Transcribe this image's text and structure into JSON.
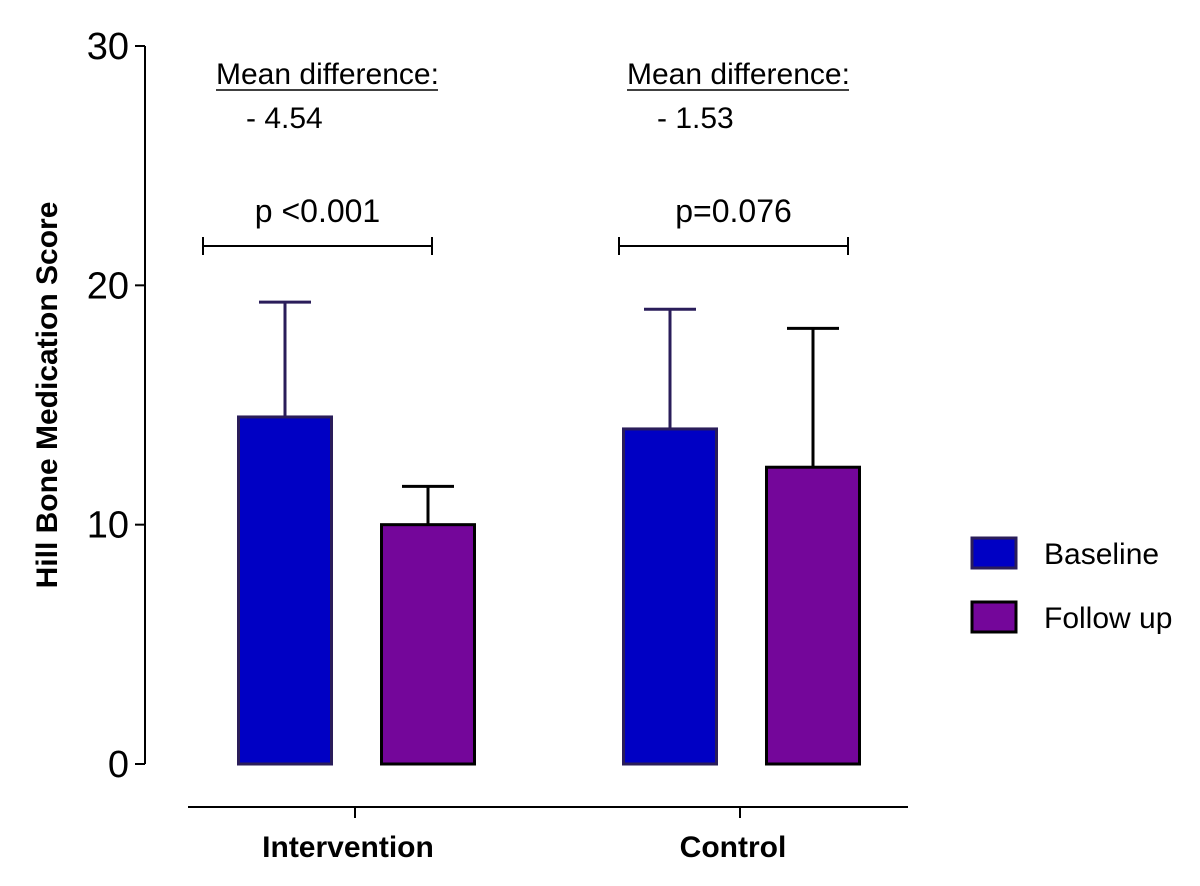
{
  "chart_data": {
    "type": "bar",
    "title": "",
    "xlabel": "",
    "ylabel": "Hill Bone Medication Score",
    "ylim": [
      0,
      30
    ],
    "yticks": [
      0,
      10,
      20,
      30
    ],
    "categories": [
      "Intervention",
      "Control"
    ],
    "series": [
      {
        "name": "Baseline",
        "color": "#0000c4",
        "border": "#2a1d5a",
        "values": [
          14.5,
          14.0
        ],
        "error_upper": [
          19.3,
          19.0
        ]
      },
      {
        "name": "Follow up",
        "color": "#74069a",
        "border": "#000000",
        "values": [
          10.0,
          12.4
        ],
        "error_upper": [
          11.6,
          18.2
        ]
      }
    ],
    "annotations": [
      {
        "group": 0,
        "heading": "Mean difference:",
        "value": "- 4.54",
        "pvalue": "p <0.001"
      },
      {
        "group": 1,
        "heading": "Mean difference:",
        "value": "- 1.53",
        "pvalue": "p=0.076"
      }
    ],
    "legend_position": "right"
  }
}
